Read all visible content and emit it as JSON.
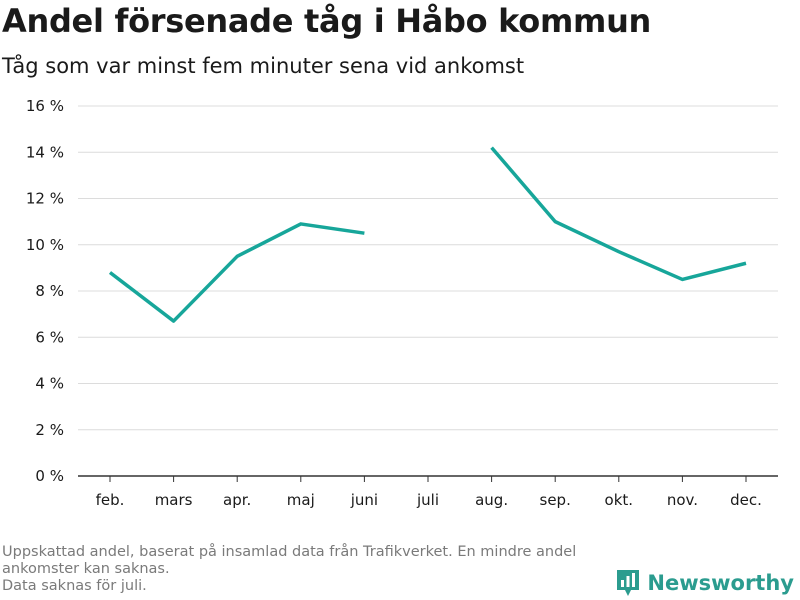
{
  "header": {
    "title": "Andel försenade tåg i Håbo kommun",
    "subtitle": "Tåg som var minst fem minuter sena vid ankomst"
  },
  "footnote": {
    "line1": "Uppskattad andel, baserat på insamlad data från Trafikverket. En mindre andel",
    "line2": "ankomster kan saknas.",
    "line3": "Data saknas för juli."
  },
  "brand": {
    "name": "Newsworthy",
    "color": "#2b9c8f"
  },
  "chart_data": {
    "type": "line",
    "categories": [
      "feb.",
      "mars",
      "apr.",
      "maj",
      "juni",
      "juli",
      "aug.",
      "sep.",
      "okt.",
      "nov.",
      "dec."
    ],
    "series": [
      {
        "values": [
          8.8,
          6.7,
          9.5,
          10.9,
          10.5,
          null,
          14.2,
          11.0,
          9.7,
          8.5,
          9.2
        ],
        "color": "#17a69a"
      }
    ],
    "ylim": [
      0,
      16
    ],
    "yticks": [
      0,
      2,
      4,
      6,
      8,
      10,
      12,
      14,
      16
    ],
    "ytick_labels": [
      "0 %",
      "2 %",
      "4 %",
      "6 %",
      "8 %",
      "10 %",
      "12 %",
      "14 %",
      "16 %"
    ],
    "xlabel": "",
    "ylabel": "",
    "grid": true,
    "legend": "none"
  }
}
